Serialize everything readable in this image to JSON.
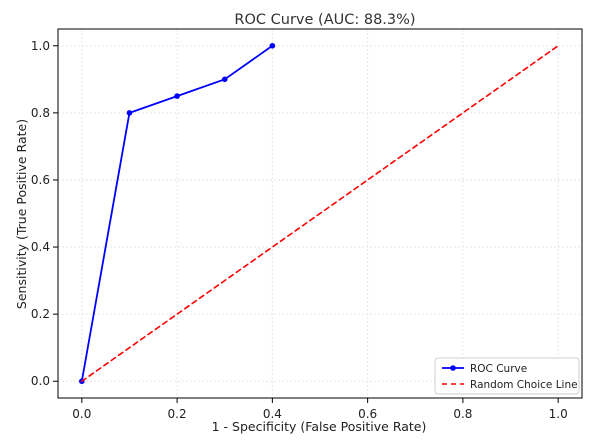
{
  "chart_data": {
    "type": "line",
    "title": "ROC Curve (AUC: 88.3%)",
    "xlabel": "1 - Specificity (False Positive Rate)",
    "ylabel": "Sensitivity (True Positive Rate)",
    "xlim": [
      -0.05,
      1.05
    ],
    "ylim": [
      -0.05,
      1.05
    ],
    "xticks": [
      "0.0",
      "0.2",
      "0.4",
      "0.6",
      "0.8",
      "1.0"
    ],
    "yticks": [
      "0.0",
      "0.2",
      "0.4",
      "0.6",
      "0.8",
      "1.0"
    ],
    "grid": true,
    "legend_position": "bottom-right",
    "series": [
      {
        "name": "ROC Curve",
        "color": "#0000ff",
        "line_style": "solid",
        "marker": "circle",
        "x": [
          0.0,
          0.1,
          0.2,
          0.3,
          0.4
        ],
        "y": [
          0.0,
          0.8,
          0.85,
          0.9,
          1.0
        ]
      },
      {
        "name": "Random Choice Line",
        "color": "#ff0000",
        "line_style": "dashed",
        "marker": "none",
        "x": [
          0.0,
          1.0
        ],
        "y": [
          0.0,
          1.0
        ]
      }
    ]
  }
}
